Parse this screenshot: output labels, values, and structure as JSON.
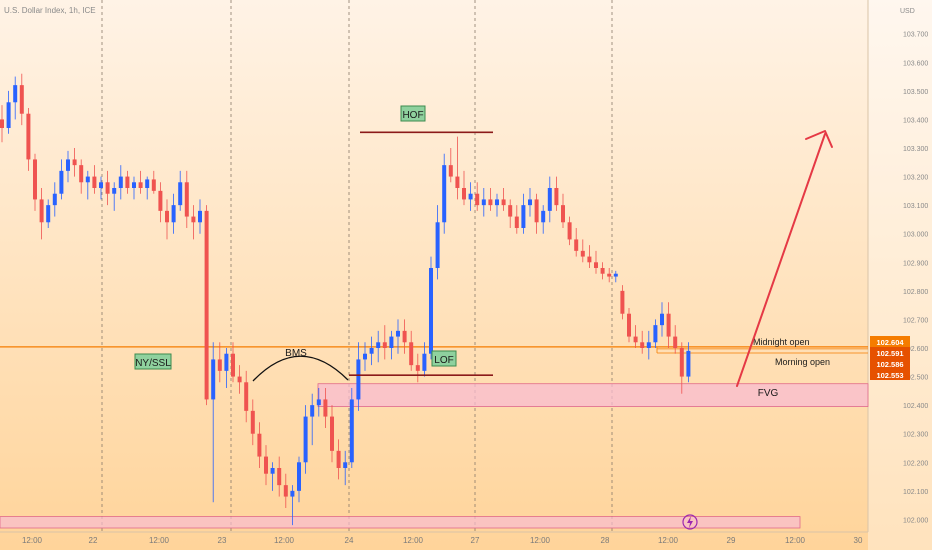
{
  "symbol_header": "U.S. Dollar Index, 1h, ICE",
  "currency_label": "USD",
  "colors": {
    "up": "#2962ff",
    "down": "#ef5350",
    "bg_top": "#fff3e6",
    "bg_bottom": "#ffd49a",
    "level_orange": "#f57c00",
    "zone_fill": "#f8bbd0",
    "zone_border": "#e06a8a",
    "dark_red_line": "#8b1a1a",
    "arrow": "#e53945",
    "label_green_bg": "#8fd19e",
    "label_green_border": "#3c8a4e"
  },
  "chart_data": {
    "type": "candlestick",
    "y_axis_ticks": [
      "103.700",
      "103.600",
      "103.500",
      "103.400",
      "103.300",
      "103.200",
      "103.100",
      "103.000",
      "102.900",
      "102.800",
      "102.700",
      "102.600",
      "102.500",
      "102.400",
      "102.300",
      "102.200",
      "102.100",
      "102.000"
    ],
    "y_range": [
      101.97,
      103.79
    ],
    "x_axis_ticks": [
      "12:00",
      "22",
      "12:00",
      "23",
      "12:00",
      "24",
      "12:00",
      "27",
      "12:00",
      "28",
      "12:00",
      "29",
      "12:00",
      "30"
    ],
    "session_separators": [
      "22",
      "23",
      "24",
      "27",
      "28"
    ],
    "price_labels": [
      {
        "text": "102.604",
        "value": 102.604,
        "color": "#f57c00"
      },
      {
        "text": "102.591",
        "value": 102.591,
        "color": "#e65100"
      },
      {
        "text": "102.586",
        "value": 102.586,
        "color": "#e65100"
      },
      {
        "text": "102.553",
        "value": 102.553,
        "color": "#e65100"
      }
    ],
    "levels": [
      {
        "name": "Midnight open",
        "price": 102.604
      },
      {
        "name": "Morning open",
        "price": 102.586
      }
    ],
    "annotations": {
      "hof": {
        "label": "HOF",
        "price": 103.355
      },
      "lof": {
        "label": "LOF",
        "price": 102.505
      },
      "bms": {
        "label": "BMS"
      },
      "ny_ssl": {
        "label": "NY/SSL"
      },
      "fvg": {
        "label": "FVG",
        "top": 102.475,
        "bottom": 102.395
      },
      "bottom_zone": {
        "top": 102.01,
        "bottom": 101.97
      }
    },
    "candles": [
      [
        103.4,
        103.45,
        103.32,
        103.37
      ],
      [
        103.37,
        103.5,
        103.35,
        103.46
      ],
      [
        103.46,
        103.55,
        103.4,
        103.52
      ],
      [
        103.52,
        103.56,
        103.38,
        103.42
      ],
      [
        103.42,
        103.44,
        103.22,
        103.26
      ],
      [
        103.26,
        103.28,
        103.08,
        103.12
      ],
      [
        103.12,
        103.16,
        102.98,
        103.04
      ],
      [
        103.04,
        103.12,
        103.02,
        103.1
      ],
      [
        103.1,
        103.18,
        103.06,
        103.14
      ],
      [
        103.14,
        103.26,
        103.12,
        103.22
      ],
      [
        103.22,
        103.29,
        103.18,
        103.26
      ],
      [
        103.26,
        103.3,
        103.2,
        103.24
      ],
      [
        103.24,
        103.26,
        103.14,
        103.18
      ],
      [
        103.18,
        103.22,
        103.12,
        103.2
      ],
      [
        103.2,
        103.24,
        103.14,
        103.16
      ],
      [
        103.16,
        103.2,
        103.12,
        103.18
      ],
      [
        103.18,
        103.22,
        103.1,
        103.14
      ],
      [
        103.14,
        103.18,
        103.08,
        103.16
      ],
      [
        103.16,
        103.24,
        103.12,
        103.2
      ],
      [
        103.2,
        103.22,
        103.14,
        103.16
      ],
      [
        103.16,
        103.2,
        103.12,
        103.18
      ],
      [
        103.18,
        103.22,
        103.14,
        103.16
      ],
      [
        103.16,
        103.2,
        103.12,
        103.19
      ],
      [
        103.19,
        103.22,
        103.14,
        103.15
      ],
      [
        103.15,
        103.18,
        103.04,
        103.08
      ],
      [
        103.08,
        103.12,
        102.98,
        103.04
      ],
      [
        103.04,
        103.14,
        103.0,
        103.1
      ],
      [
        103.1,
        103.22,
        103.08,
        103.18
      ],
      [
        103.18,
        103.22,
        103.02,
        103.06
      ],
      [
        103.06,
        103.1,
        102.98,
        103.04
      ],
      [
        103.04,
        103.12,
        103.0,
        103.08
      ],
      [
        103.08,
        103.1,
        102.4,
        102.42
      ],
      [
        102.42,
        102.62,
        102.06,
        102.56
      ],
      [
        102.56,
        102.62,
        102.48,
        102.52
      ],
      [
        102.52,
        102.6,
        102.46,
        102.58
      ],
      [
        102.58,
        102.62,
        102.48,
        102.5
      ],
      [
        102.5,
        102.54,
        102.44,
        102.48
      ],
      [
        102.48,
        102.52,
        102.34,
        102.38
      ],
      [
        102.38,
        102.42,
        102.26,
        102.3
      ],
      [
        102.3,
        102.34,
        102.18,
        102.22
      ],
      [
        102.22,
        102.26,
        102.12,
        102.16
      ],
      [
        102.16,
        102.2,
        102.1,
        102.18
      ],
      [
        102.18,
        102.22,
        102.08,
        102.12
      ],
      [
        102.12,
        102.16,
        102.04,
        102.08
      ],
      [
        102.08,
        102.12,
        101.98,
        102.1
      ],
      [
        102.1,
        102.22,
        102.06,
        102.2
      ],
      [
        102.2,
        102.4,
        102.16,
        102.36
      ],
      [
        102.36,
        102.44,
        102.26,
        102.4
      ],
      [
        102.4,
        102.46,
        102.36,
        102.42
      ],
      [
        102.42,
        102.46,
        102.32,
        102.36
      ],
      [
        102.36,
        102.4,
        102.2,
        102.24
      ],
      [
        102.24,
        102.28,
        102.14,
        102.18
      ],
      [
        102.18,
        102.24,
        102.12,
        102.2
      ],
      [
        102.2,
        102.46,
        102.18,
        102.42
      ],
      [
        102.42,
        102.62,
        102.38,
        102.56
      ],
      [
        102.56,
        102.62,
        102.52,
        102.58
      ],
      [
        102.58,
        102.64,
        102.54,
        102.6
      ],
      [
        102.6,
        102.66,
        102.55,
        102.62
      ],
      [
        102.62,
        102.68,
        102.56,
        102.6
      ],
      [
        102.6,
        102.66,
        102.56,
        102.64
      ],
      [
        102.64,
        102.7,
        102.58,
        102.66
      ],
      [
        102.66,
        102.7,
        102.58,
        102.62
      ],
      [
        102.62,
        102.66,
        102.52,
        102.54
      ],
      [
        102.54,
        102.58,
        102.48,
        102.52
      ],
      [
        102.52,
        102.62,
        102.5,
        102.58
      ],
      [
        102.58,
        102.92,
        102.56,
        102.88
      ],
      [
        102.88,
        103.1,
        102.84,
        103.04
      ],
      [
        103.04,
        103.28,
        103.0,
        103.24
      ],
      [
        103.24,
        103.3,
        103.18,
        103.2
      ],
      [
        103.2,
        103.34,
        103.12,
        103.16
      ],
      [
        103.16,
        103.22,
        103.1,
        103.12
      ],
      [
        103.12,
        103.18,
        103.08,
        103.14
      ],
      [
        103.14,
        103.18,
        103.08,
        103.1
      ],
      [
        103.1,
        103.16,
        103.06,
        103.12
      ],
      [
        103.12,
        103.16,
        103.08,
        103.1
      ],
      [
        103.1,
        103.14,
        103.06,
        103.12
      ],
      [
        103.12,
        103.16,
        103.08,
        103.1
      ],
      [
        103.1,
        103.12,
        103.02,
        103.06
      ],
      [
        103.06,
        103.1,
        103.0,
        103.02
      ],
      [
        103.02,
        103.14,
        103.0,
        103.1
      ],
      [
        103.1,
        103.16,
        103.06,
        103.12
      ],
      [
        103.12,
        103.14,
        103.0,
        103.04
      ],
      [
        103.04,
        103.1,
        103.0,
        103.08
      ],
      [
        103.08,
        103.2,
        103.04,
        103.16
      ],
      [
        103.16,
        103.2,
        103.08,
        103.1
      ],
      [
        103.1,
        103.14,
        103.02,
        103.04
      ],
      [
        103.04,
        103.06,
        102.96,
        102.98
      ],
      [
        102.98,
        103.02,
        102.92,
        102.94
      ],
      [
        102.94,
        102.98,
        102.9,
        102.92
      ],
      [
        102.92,
        102.96,
        102.88,
        102.9
      ],
      [
        102.9,
        102.94,
        102.86,
        102.88
      ],
      [
        102.88,
        102.9,
        102.84,
        102.86
      ],
      [
        102.86,
        102.88,
        102.83,
        102.85
      ],
      [
        102.85,
        102.87,
        102.83,
        102.86
      ],
      [
        102.8,
        102.82,
        102.7,
        102.72
      ],
      [
        102.72,
        102.74,
        102.62,
        102.64
      ],
      [
        102.64,
        102.68,
        102.6,
        102.62
      ],
      [
        102.62,
        102.66,
        102.58,
        102.6
      ],
      [
        102.6,
        102.66,
        102.56,
        102.62
      ],
      [
        102.62,
        102.7,
        102.6,
        102.68
      ],
      [
        102.68,
        102.76,
        102.64,
        102.72
      ],
      [
        102.72,
        102.76,
        102.6,
        102.64
      ],
      [
        102.64,
        102.68,
        102.58,
        102.6
      ],
      [
        102.6,
        102.62,
        102.44,
        102.5
      ],
      [
        102.5,
        102.62,
        102.48,
        102.59
      ]
    ]
  }
}
